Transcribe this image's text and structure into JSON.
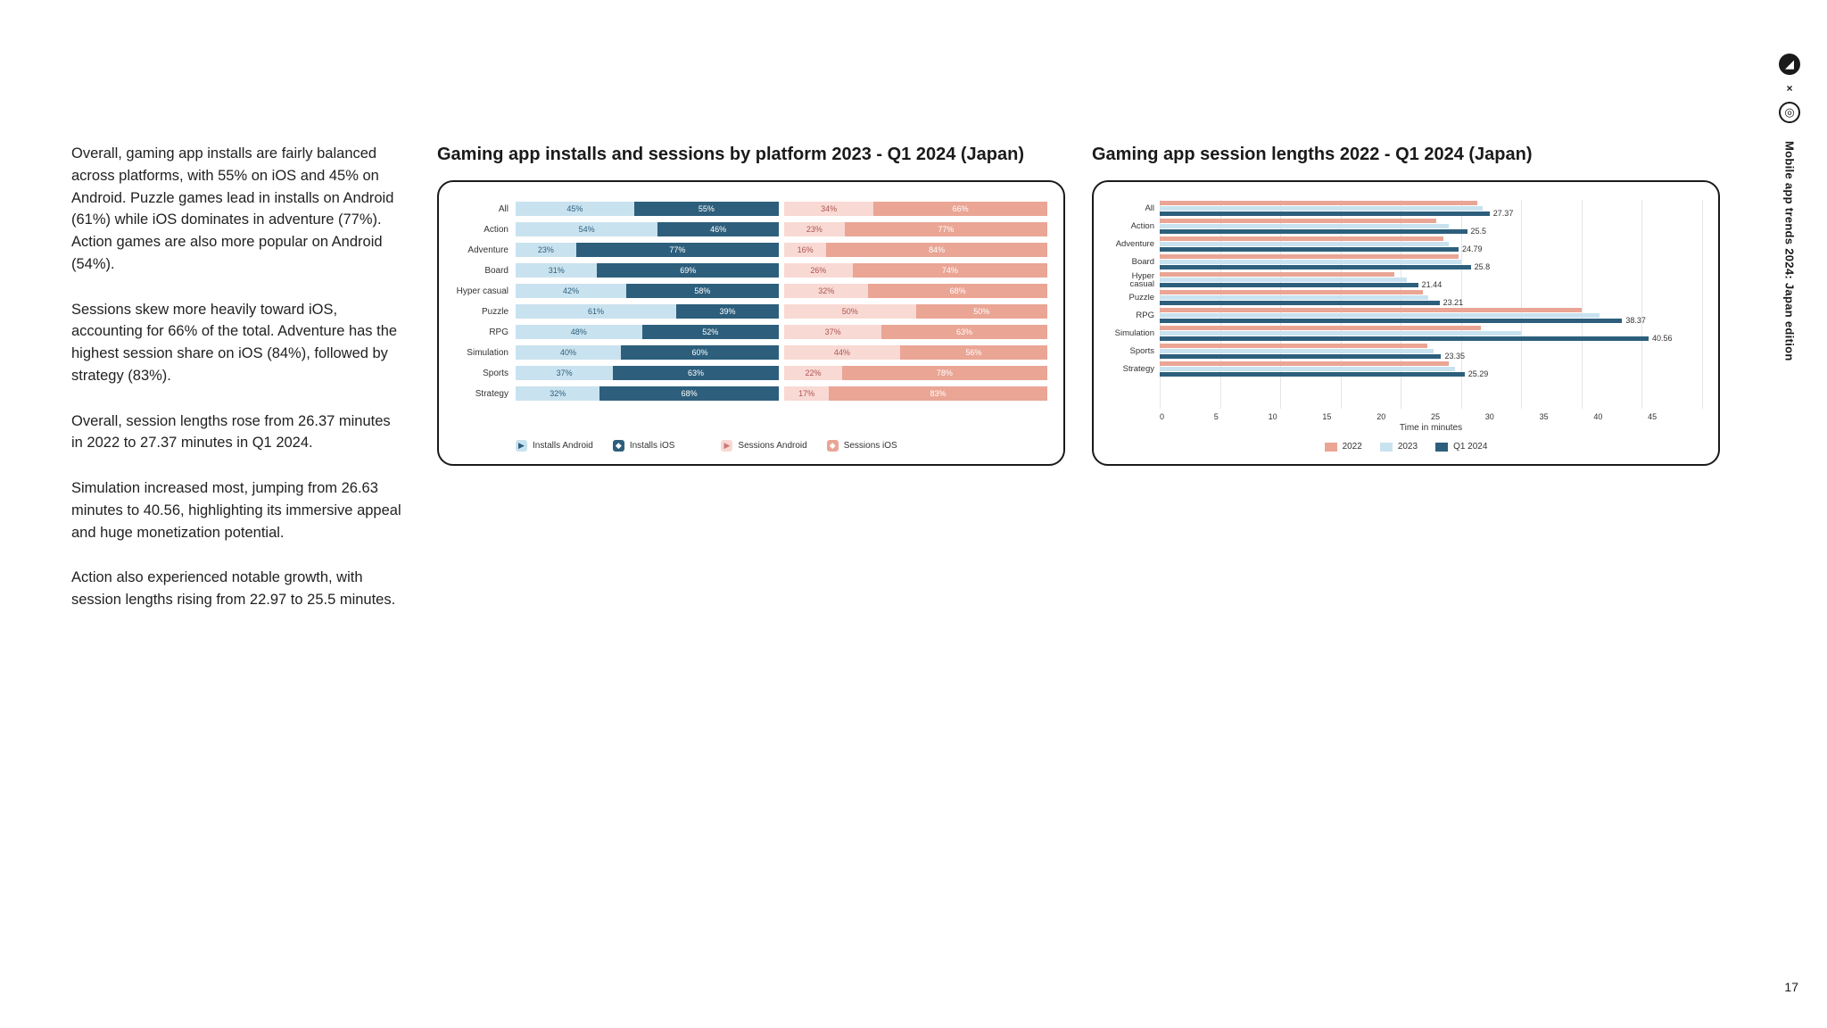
{
  "page_number": "17",
  "side_label": "Mobile app trends 2024: Japan edition",
  "paragraphs": [
    "Overall, gaming app installs are fairly balanced across platforms, with 55% on iOS and 45% on Android. Puzzle games lead in installs on Android (61%) while iOS dominates in adventure (77%). Action games are also more popular on Android (54%).",
    "Sessions skew more heavily toward iOS, accounting for 66% of the total. Adventure has the highest session share on iOS (84%), followed by strategy (83%).",
    "Overall, session lengths rose from 26.37 minutes in 2022 to 27.37 minutes in Q1 2024.",
    "Simulation increased most, jumping from 26.63 minutes to 40.56, highlighting its immersive appeal and huge monetization potential.",
    "Action also experienced notable growth, with session lengths rising from 22.97 to 25.5 minutes."
  ],
  "colors": {
    "installs_android": "#c9e2ef",
    "installs_ios": "#2d5f7c",
    "sessions_android": "#f9d9d3",
    "sessions_ios": "#eaa595",
    "y2022": "#eaa595",
    "y2023": "#c9e2ef",
    "y2024": "#2d5f7c",
    "text_dark": "#1a1a1a"
  },
  "chart1": {
    "title": "Gaming app installs and sessions by platform 2023 - Q1 2024 (Japan)",
    "categories": [
      "All",
      "Action",
      "Adventure",
      "Board",
      "Hyper casual",
      "Puzzle",
      "RPG",
      "Simulation",
      "Sports",
      "Strategy"
    ],
    "installs_android": [
      45,
      54,
      23,
      31,
      42,
      61,
      48,
      40,
      37,
      32
    ],
    "installs_ios": [
      55,
      46,
      77,
      69,
      58,
      39,
      52,
      60,
      63,
      68
    ],
    "sessions_android": [
      34,
      23,
      16,
      26,
      32,
      50,
      37,
      44,
      22,
      17
    ],
    "sessions_ios": [
      66,
      77,
      84,
      74,
      68,
      50,
      63,
      56,
      78,
      83
    ],
    "legend": {
      "installs_android": "Installs Android",
      "installs_ios": "Installs iOS",
      "sessions_android": "Sessions Android",
      "sessions_ios": "Sessions iOS"
    }
  },
  "chart2": {
    "title": "Gaming app session lengths 2022 - Q1 2024 (Japan)",
    "categories": [
      "All",
      "Action",
      "Adventure",
      "Board",
      "Hyper casual",
      "Puzzle",
      "RPG",
      "Simulation",
      "Sports",
      "Strategy"
    ],
    "labels_short": [
      "All",
      "Action",
      "Adventure",
      "Board",
      "Hyper\ncasual",
      "Puzzle",
      "RPG",
      "Simulation",
      "Sports",
      "Strategy"
    ],
    "y2022": [
      26.37,
      22.97,
      23.5,
      24.8,
      19.5,
      21.8,
      35.0,
      26.63,
      22.2,
      24.0
    ],
    "y2023": [
      26.8,
      24.0,
      24.0,
      25.0,
      20.5,
      22.3,
      36.5,
      30.0,
      22.7,
      24.5
    ],
    "y2024": [
      27.37,
      25.5,
      24.79,
      25.8,
      21.44,
      23.21,
      38.37,
      40.56,
      23.35,
      25.29
    ],
    "value_labels": [
      "27.37",
      "25.5",
      "24.79",
      "25.8",
      "21.44",
      "23.21",
      "38.37",
      "40.56",
      "23.35",
      "25.29"
    ],
    "xmax": 45,
    "xticks": [
      0,
      5,
      10,
      15,
      20,
      25,
      30,
      35,
      40,
      45
    ],
    "xlabel": "Time in minutes",
    "legend": {
      "y2022": "2022",
      "y2023": "2023",
      "y2024": "Q1 2024"
    }
  }
}
